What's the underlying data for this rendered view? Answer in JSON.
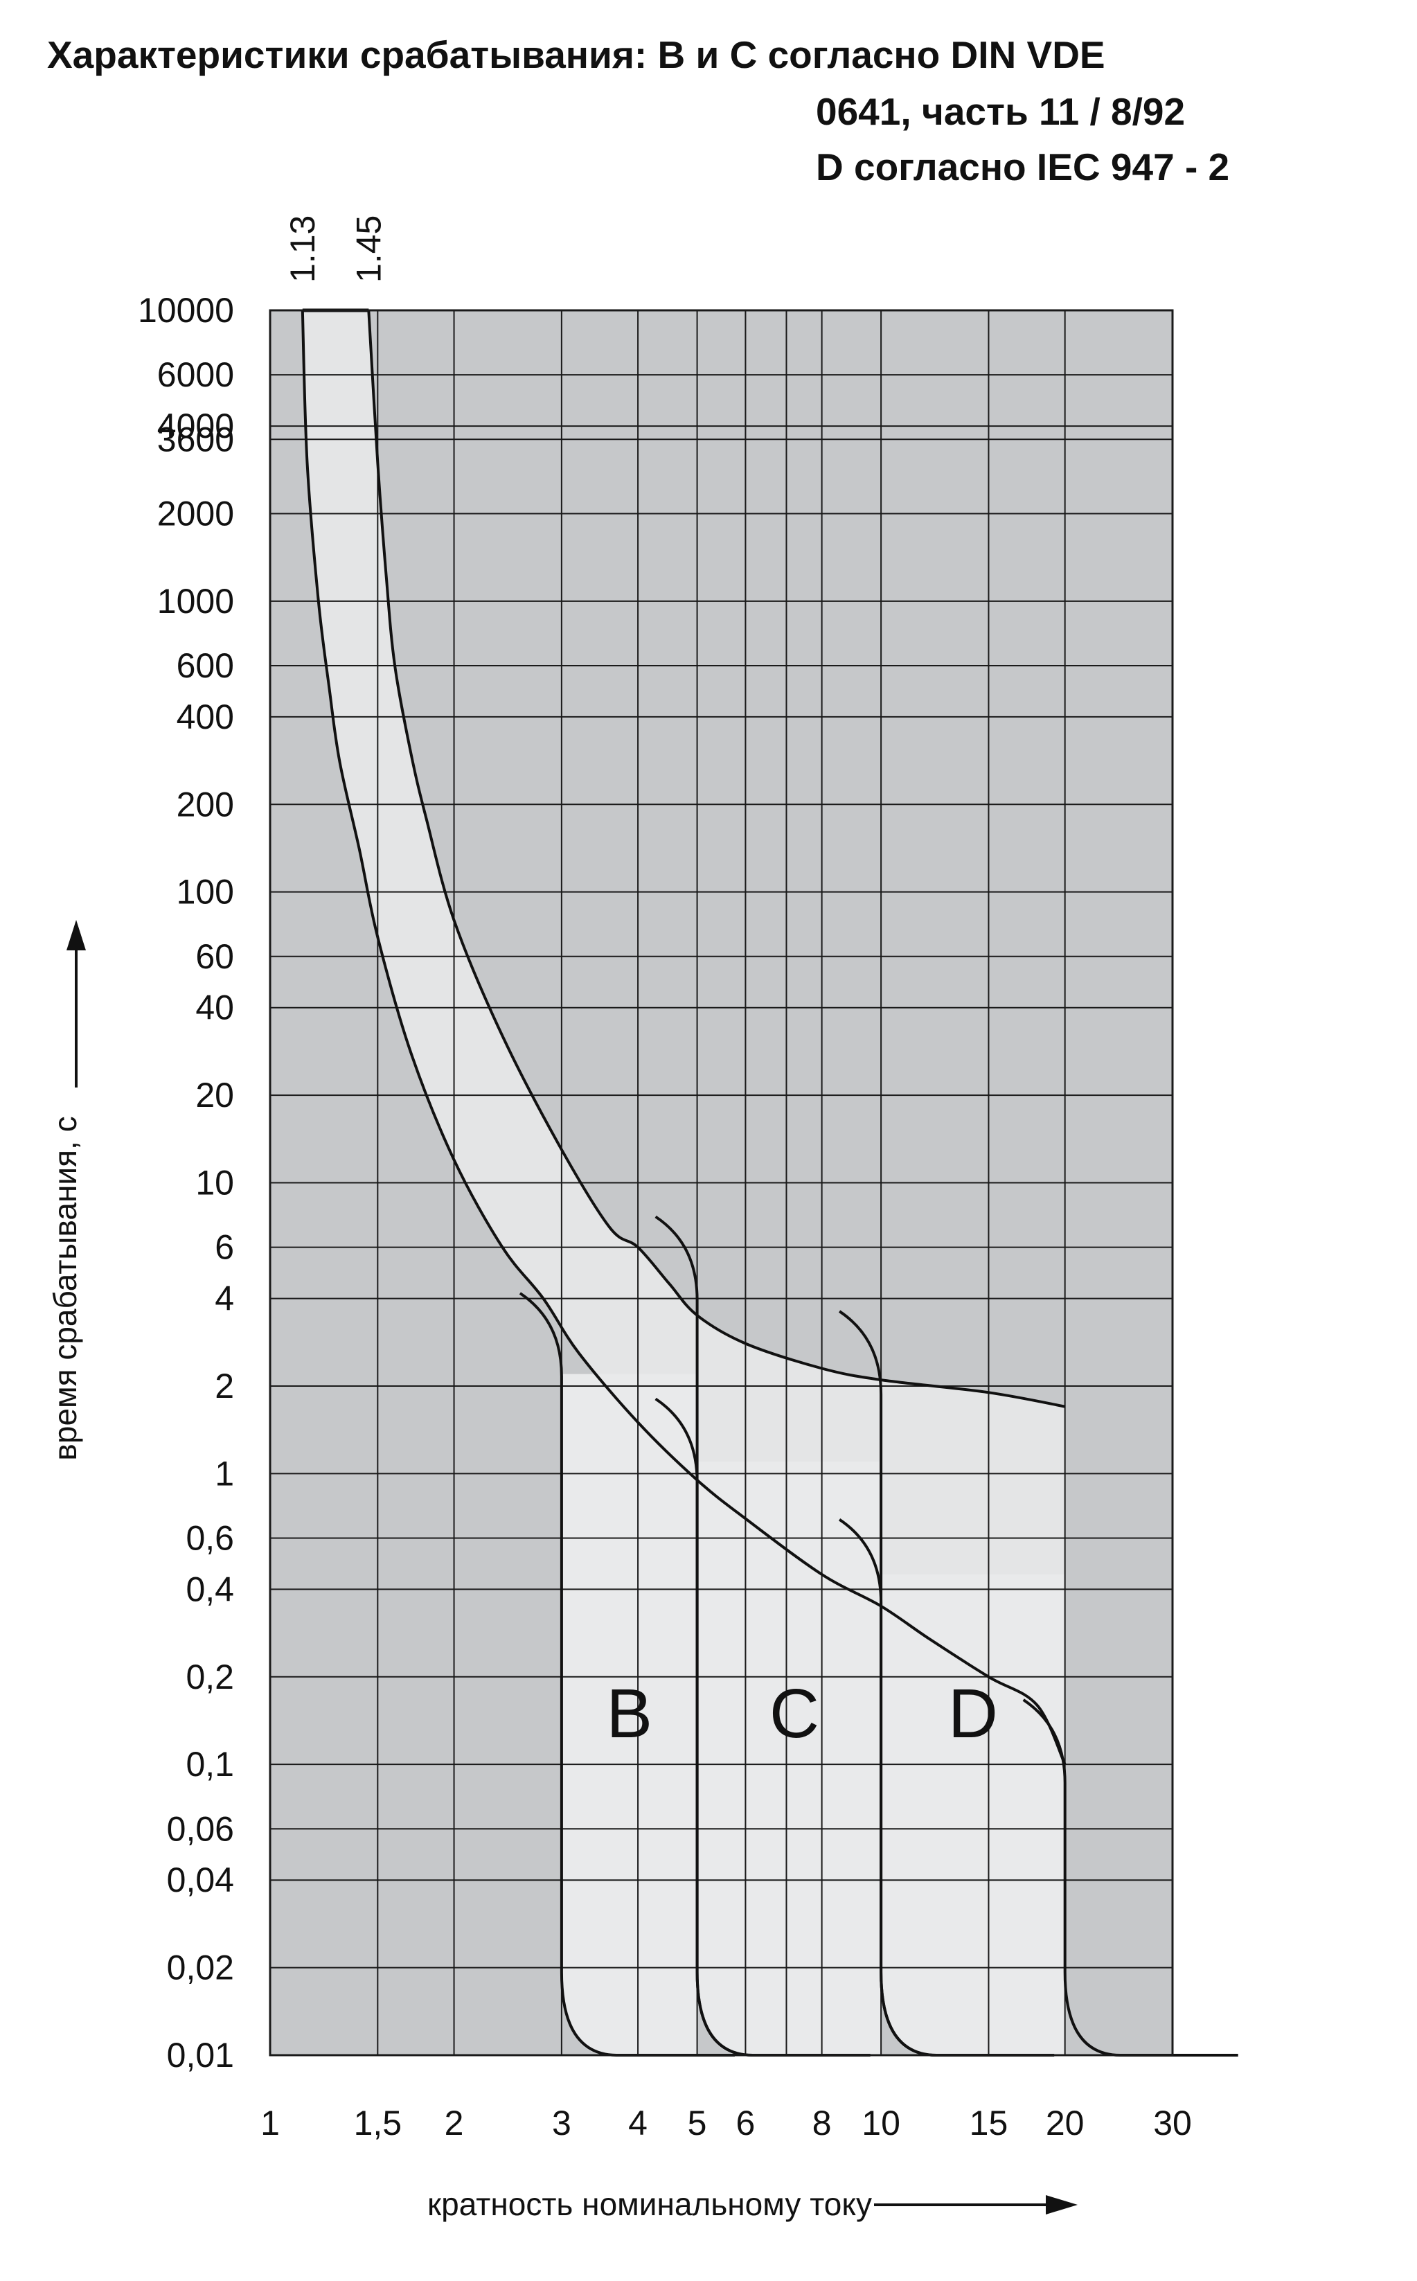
{
  "title": {
    "line1": "Характеристики срабатывания: B и C согласно DIN VDE",
    "line2": "0641, часть 11 / 8/92",
    "line3": "D согласно IEC 947 - 2"
  },
  "colors": {
    "plot_background": "#c6c8ca",
    "band_fill": "#e4e5e6",
    "region_fill": "#e9eaeb",
    "grid": "#1a1a1a",
    "curve": "#111111"
  },
  "chart_data": {
    "type": "area",
    "x_scale": "log",
    "y_scale": "log",
    "xlim": [
      1,
      30
    ],
    "ylim": [
      0.01,
      10000
    ],
    "xlabel": "кратность номинальному току",
    "ylabel": "время срабатывания, с",
    "x_ticks": [
      {
        "value": 1,
        "label": "1"
      },
      {
        "value": 1.5,
        "label": "1,5"
      },
      {
        "value": 2,
        "label": "2"
      },
      {
        "value": 3,
        "label": "3"
      },
      {
        "value": 4,
        "label": "4"
      },
      {
        "value": 5,
        "label": "5"
      },
      {
        "value": 6,
        "label": "6"
      },
      {
        "value": 8,
        "label": "8"
      },
      {
        "value": 10,
        "label": "10"
      },
      {
        "value": 15,
        "label": "15"
      },
      {
        "value": 20,
        "label": "20"
      },
      {
        "value": 30,
        "label": "30"
      }
    ],
    "x_grid": [
      1.5,
      2,
      3,
      4,
      5,
      6,
      7,
      8,
      10,
      15,
      20
    ],
    "y_ticks": [
      {
        "value": 10000,
        "label": "10000"
      },
      {
        "value": 6000,
        "label": "6000"
      },
      {
        "value": 4000,
        "label": "4000"
      },
      {
        "value": 3600,
        "label": "3600"
      },
      {
        "value": 2000,
        "label": "2000"
      },
      {
        "value": 1000,
        "label": "1000"
      },
      {
        "value": 600,
        "label": "600"
      },
      {
        "value": 400,
        "label": "400"
      },
      {
        "value": 200,
        "label": "200"
      },
      {
        "value": 100,
        "label": "100"
      },
      {
        "value": 60,
        "label": "60"
      },
      {
        "value": 40,
        "label": "40"
      },
      {
        "value": 20,
        "label": "20"
      },
      {
        "value": 10,
        "label": "10"
      },
      {
        "value": 6,
        "label": "6"
      },
      {
        "value": 4,
        "label": "4"
      },
      {
        "value": 2,
        "label": "2"
      },
      {
        "value": 1,
        "label": "1"
      },
      {
        "value": 0.6,
        "label": "0,6"
      },
      {
        "value": 0.4,
        "label": "0,4"
      },
      {
        "value": 0.2,
        "label": "0,2"
      },
      {
        "value": 0.1,
        "label": "0,1"
      },
      {
        "value": 0.06,
        "label": "0,06"
      },
      {
        "value": 0.04,
        "label": "0,04"
      },
      {
        "value": 0.02,
        "label": "0,02"
      },
      {
        "value": 0.01,
        "label": "0,01"
      }
    ],
    "top_markers": [
      {
        "value": 1.13,
        "label": "1.13"
      },
      {
        "value": 1.45,
        "label": "1.45"
      }
    ],
    "thermal_band": {
      "lower_curve": [
        [
          1.13,
          10000
        ],
        [
          1.15,
          3000
        ],
        [
          1.2,
          1000
        ],
        [
          1.25,
          500
        ],
        [
          1.3,
          280
        ],
        [
          1.4,
          140
        ],
        [
          1.5,
          70
        ],
        [
          1.7,
          28
        ],
        [
          2.0,
          12
        ],
        [
          2.4,
          6
        ],
        [
          2.8,
          4
        ],
        [
          3.2,
          2.6
        ],
        [
          4.0,
          1.5
        ],
        [
          5.0,
          0.95
        ],
        [
          6.0,
          0.7
        ],
        [
          8.0,
          0.45
        ],
        [
          10.0,
          0.35
        ],
        [
          12.0,
          0.27
        ],
        [
          15.0,
          0.2
        ],
        [
          18.0,
          0.16
        ],
        [
          20.0,
          0.1
        ]
      ],
      "upper_curve": [
        [
          1.45,
          10000
        ],
        [
          1.5,
          3000
        ],
        [
          1.55,
          1200
        ],
        [
          1.6,
          600
        ],
        [
          1.7,
          300
        ],
        [
          1.8,
          180
        ],
        [
          2.0,
          80
        ],
        [
          2.4,
          32
        ],
        [
          3.0,
          13
        ],
        [
          3.6,
          7
        ],
        [
          4.0,
          6
        ],
        [
          4.5,
          4.5
        ],
        [
          5.0,
          3.5
        ],
        [
          6.0,
          2.8
        ],
        [
          8.0,
          2.3
        ],
        [
          10.0,
          2.1
        ],
        [
          15.0,
          1.9
        ],
        [
          20.0,
          1.7
        ]
      ]
    },
    "regions": [
      {
        "name": "B",
        "instant_trip_min": 3,
        "instant_trip_max": 5
      },
      {
        "name": "C",
        "instant_trip_min": 5,
        "instant_trip_max": 10
      },
      {
        "name": "D",
        "instant_trip_min": 10,
        "instant_trip_max": 20
      }
    ]
  }
}
